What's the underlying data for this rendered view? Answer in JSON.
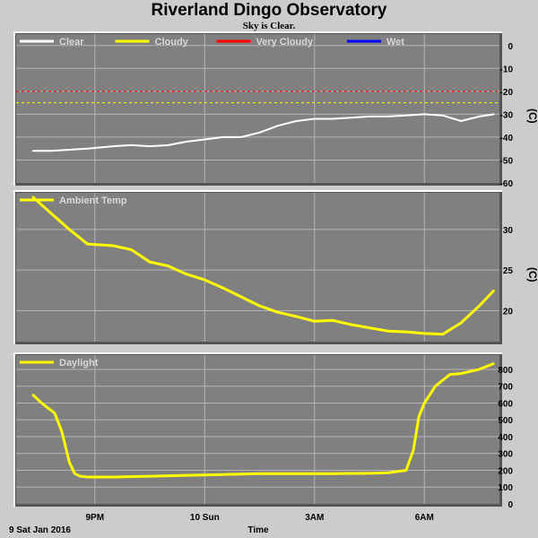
{
  "title": "Riverland Dingo Observatory",
  "subtitle": "Sky is Clear.",
  "date_label": "9 Sat Jan 2016",
  "x_axis_label": "Time",
  "x_ticks": [
    "9PM",
    "10 Sun",
    "3AM",
    "6AM"
  ],
  "colors": {
    "background": "#cccccc",
    "plot_bg": "#808080",
    "grid": "#b4b4b4",
    "clear": "#ffffff",
    "cloudy": "#ffff00",
    "very_cloudy": "#ff0000",
    "wet": "#0000ff"
  },
  "chart_data": [
    {
      "type": "line",
      "legend": [
        {
          "label": "Clear",
          "color": "#ffffff"
        },
        {
          "label": "Cloudy",
          "color": "#ffff00"
        },
        {
          "label": "Very Cloudy",
          "color": "#ff0000"
        },
        {
          "label": "Wet",
          "color": "#0000ff"
        }
      ],
      "unit": "(C)",
      "ylim": [
        -60,
        5
      ],
      "yticks": [
        0,
        -10,
        -20,
        -30,
        -40,
        -50,
        -60
      ],
      "thresholds": [
        {
          "value": -20,
          "color": "#ff0000"
        },
        {
          "value": -25,
          "color": "#ffff00"
        }
      ],
      "x": [
        19.3,
        19.8,
        20.3,
        20.8,
        21.5,
        22.0,
        22.5,
        23.0,
        23.5,
        24.0,
        24.5,
        25.0,
        25.5,
        26.0,
        26.5,
        27.0,
        27.5,
        28.0,
        28.5,
        29.0,
        29.5,
        30.0,
        30.5,
        31.0,
        31.5,
        31.9
      ],
      "series": [
        {
          "name": "Clear",
          "color": "#ffffff",
          "values": [
            -46,
            -46,
            -45.5,
            -45,
            -44,
            -43.5,
            -44,
            -43.5,
            -42,
            -41,
            -40,
            -40,
            -38,
            -35,
            -33,
            -32,
            -32,
            -31.5,
            -31,
            -31,
            -30.5,
            -30,
            -30.5,
            -33,
            -31,
            -30
          ]
        }
      ]
    },
    {
      "type": "line",
      "legend": [
        {
          "label": "Ambient Temp",
          "color": "#ffff00"
        }
      ],
      "unit": "(C)",
      "ylim": [
        16.2,
        34.5
      ],
      "yticks": [
        20,
        25,
        30
      ],
      "x": [
        19.3,
        19.8,
        20.3,
        20.8,
        21.5,
        22.0,
        22.5,
        23.0,
        23.5,
        24.0,
        24.5,
        25.0,
        25.5,
        26.0,
        26.5,
        27.0,
        27.5,
        28.0,
        28.5,
        29.0,
        29.5,
        30.0,
        30.5,
        31.0,
        31.5,
        31.9
      ],
      "series": [
        {
          "name": "Ambient Temp",
          "color": "#ffff00",
          "values": [
            34,
            32,
            30,
            28.2,
            28,
            27.5,
            26,
            25.5,
            24.5,
            23.8,
            22.8,
            21.7,
            20.6,
            19.8,
            19.3,
            18.7,
            18.8,
            18.3,
            17.9,
            17.5,
            17.4,
            17.2,
            17.1,
            18.5,
            20.6,
            22.5
          ]
        }
      ]
    },
    {
      "type": "line",
      "legend": [
        {
          "label": "Daylight",
          "color": "#ffff00"
        }
      ],
      "unit": "",
      "ylim": [
        0,
        885
      ],
      "yticks": [
        0,
        100,
        200,
        300,
        400,
        500,
        600,
        700,
        800
      ],
      "x": [
        19.3,
        19.6,
        19.9,
        20.1,
        20.3,
        20.45,
        20.6,
        20.8,
        21.5,
        22.5,
        23.5,
        24.5,
        25.5,
        26.5,
        27.5,
        28.5,
        29.0,
        29.5,
        29.7,
        29.85,
        30.0,
        30.3,
        30.7,
        31.0,
        31.5,
        31.9
      ],
      "series": [
        {
          "name": "Daylight",
          "color": "#ffff00",
          "values": [
            650,
            590,
            540,
            430,
            250,
            180,
            165,
            160,
            160,
            165,
            170,
            175,
            180,
            180,
            180,
            182,
            185,
            200,
            320,
            520,
            600,
            700,
            770,
            775,
            800,
            835
          ]
        }
      ]
    }
  ]
}
